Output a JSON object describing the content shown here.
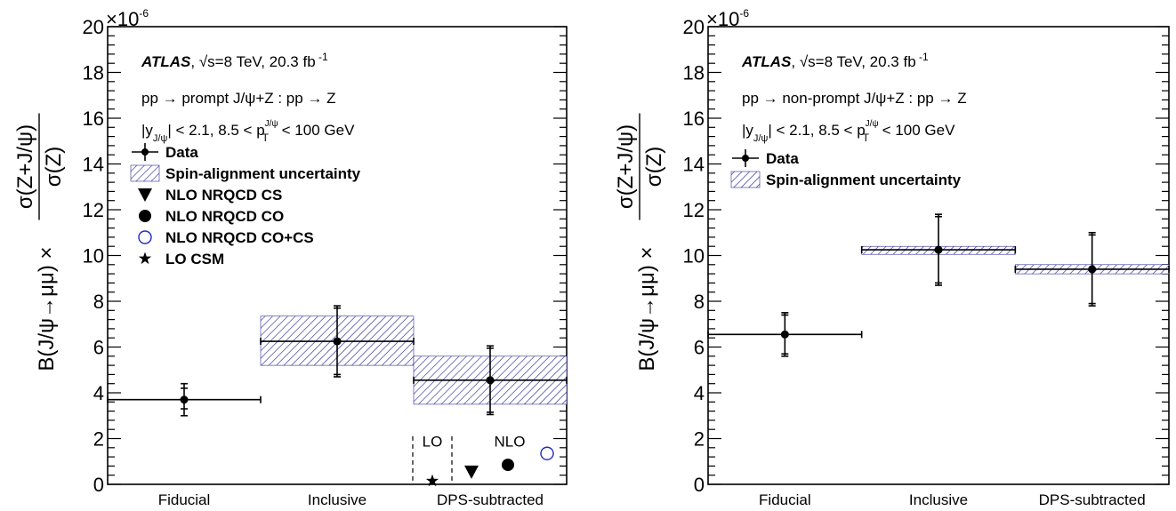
{
  "colors": {
    "data": "#000000",
    "band_hatch": "#2e2e9a",
    "co_cs_marker": "#1f2bbf"
  },
  "chart_data": [
    {
      "type": "scatter",
      "y_multiplier_text": "×10",
      "y_multiplier_exp": "-6",
      "ylim": [
        0,
        20
      ],
      "yticks": [
        0,
        2,
        4,
        6,
        8,
        10,
        12,
        14,
        16,
        18,
        20
      ],
      "ylabel_left": "B(J/ψ→μμ) ×",
      "ylabel_num": "σ(Z+J/ψ)",
      "ylabel_den": "σ(Z)",
      "categories": [
        "Fiducial",
        "Inclusive",
        "DPS-subtracted"
      ],
      "atlas_label": "ATLAS",
      "energy_label": ", √s=8 TeV, 20.3 fb",
      "lumi_exp": "-1",
      "process_label": "pp → prompt J/ψ+Z : pp → Z",
      "cuts_a": "|y",
      "cuts_sub1": "J/ψ",
      "cuts_b": "| < 2.1, 8.5 < p",
      "cuts_sup": "J/ψ",
      "cuts_sub2": "T",
      "cuts_c": " < 100 GeV",
      "legend": [
        {
          "label": "Data",
          "marker": "errbar"
        },
        {
          "label": "Spin-alignment uncertainty",
          "marker": "band"
        },
        {
          "label": "NLO NRQCD CS",
          "marker": "triangle-down"
        },
        {
          "label": "NLO NRQCD CO",
          "marker": "circle-filled"
        },
        {
          "label": "NLO NRQCD CO+CS",
          "marker": "circle-open"
        },
        {
          "label": "LO CSM",
          "marker": "star"
        }
      ],
      "data": [
        {
          "category": "Fiducial",
          "y": 3.7,
          "stat_lo": 3.3,
          "stat_hi": 4.2,
          "tot_lo": 3.0,
          "tot_hi": 4.4,
          "band": null
        },
        {
          "category": "Inclusive",
          "y": 6.25,
          "stat_lo": 4.8,
          "stat_hi": 7.7,
          "tot_lo": 4.7,
          "tot_hi": 7.8,
          "band": [
            5.2,
            7.35
          ]
        },
        {
          "category": "DPS-subtracted",
          "y": 4.55,
          "stat_lo": 3.15,
          "stat_hi": 5.95,
          "tot_lo": 3.05,
          "tot_hi": 6.05,
          "band": [
            3.5,
            5.6
          ]
        }
      ],
      "theory_labels": {
        "lo": "LO",
        "nlo": "NLO"
      },
      "theory": [
        {
          "name": "LO CSM",
          "marker": "star",
          "y": 0.15
        },
        {
          "name": "NLO NRQCD CS",
          "marker": "triangle-down",
          "y": 0.55
        },
        {
          "name": "NLO NRQCD CO",
          "marker": "circle-filled",
          "y": 0.85
        },
        {
          "name": "NLO NRQCD CO+CS",
          "marker": "circle-open",
          "y": 1.35
        }
      ]
    },
    {
      "type": "scatter",
      "y_multiplier_text": "×10",
      "y_multiplier_exp": "-6",
      "ylim": [
        0,
        20
      ],
      "yticks": [
        0,
        2,
        4,
        6,
        8,
        10,
        12,
        14,
        16,
        18,
        20
      ],
      "ylabel_left": "B(J/ψ→μμ) ×",
      "ylabel_num": "σ(Z+J/ψ)",
      "ylabel_den": "σ(Z)",
      "categories": [
        "Fiducial",
        "Inclusive",
        "DPS-subtracted"
      ],
      "atlas_label": "ATLAS",
      "energy_label": ", √s=8 TeV, 20.3 fb",
      "lumi_exp": "-1",
      "process_label": "pp → non-prompt J/ψ+Z : pp → Z",
      "cuts_a": "|y",
      "cuts_sub1": "J/ψ",
      "cuts_b": "| < 2.1, 8.5 < p",
      "cuts_sup": "J/ψ",
      "cuts_sub2": "T",
      "cuts_c": " < 100 GeV",
      "legend": [
        {
          "label": "Data",
          "marker": "errbar"
        },
        {
          "label": "Spin-alignment uncertainty",
          "marker": "band"
        }
      ],
      "data": [
        {
          "category": "Fiducial",
          "y": 6.55,
          "stat_lo": 5.7,
          "stat_hi": 7.4,
          "tot_lo": 5.6,
          "tot_hi": 7.5,
          "band": null
        },
        {
          "category": "Inclusive",
          "y": 10.25,
          "stat_lo": 8.8,
          "stat_hi": 11.7,
          "tot_lo": 8.7,
          "tot_hi": 11.8,
          "band": [
            10.05,
            10.4
          ]
        },
        {
          "category": "DPS-subtracted",
          "y": 9.4,
          "stat_lo": 7.9,
          "stat_hi": 10.9,
          "tot_lo": 7.8,
          "tot_hi": 11.0,
          "band": [
            9.2,
            9.6
          ]
        }
      ]
    }
  ]
}
